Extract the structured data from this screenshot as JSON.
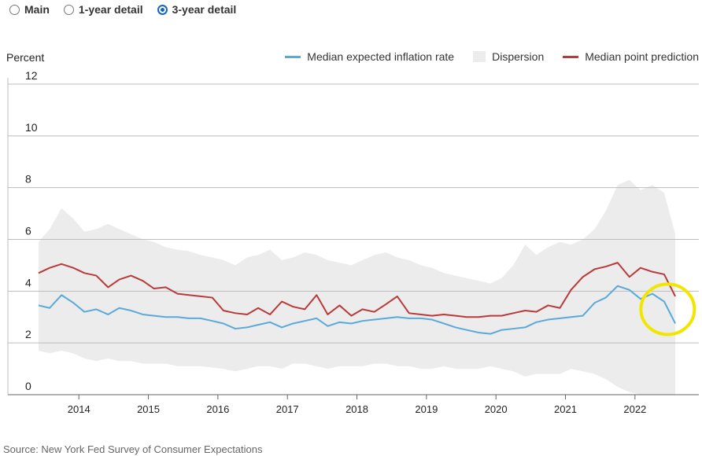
{
  "tabs": [
    {
      "label": "Main",
      "selected": false
    },
    {
      "label": "1-year detail",
      "selected": false
    },
    {
      "label": "3-year detail",
      "selected": true
    }
  ],
  "colors": {
    "median_rate": "#5aa9d9",
    "dispersion": "#ececec",
    "point_prediction": "#b83a3a",
    "highlight": "#f2e600",
    "selected_radio": "#1565c0"
  },
  "source": "Source: New York Fed Survey of Consumer Expectations",
  "chart_data": {
    "type": "line",
    "ylabel": "Percent",
    "xlabel": "",
    "ylim": [
      0,
      12
    ],
    "yticks": [
      "0",
      "2",
      "4",
      "6",
      "8",
      "10",
      "12"
    ],
    "xlim": [
      2013.42,
      2022.67
    ],
    "xticks": [
      "2014",
      "2015",
      "2016",
      "2017",
      "2018",
      "2019",
      "2020",
      "2021",
      "2022"
    ],
    "grid": true,
    "legend_position": "top-right",
    "legend": [
      "Median expected inflation rate",
      "Dispersion",
      "Median point prediction"
    ],
    "annotation": "yellow circle highlighting the 2022 decline",
    "series": [
      {
        "name": "Median expected inflation rate",
        "points": [
          [
            2013.42,
            3.45
          ],
          [
            2013.58,
            3.35
          ],
          [
            2013.75,
            3.85
          ],
          [
            2013.92,
            3.55
          ],
          [
            2014.08,
            3.2
          ],
          [
            2014.25,
            3.3
          ],
          [
            2014.42,
            3.1
          ],
          [
            2014.58,
            3.35
          ],
          [
            2014.75,
            3.25
          ],
          [
            2014.92,
            3.1
          ],
          [
            2015.08,
            3.05
          ],
          [
            2015.25,
            3.0
          ],
          [
            2015.42,
            3.0
          ],
          [
            2015.58,
            2.95
          ],
          [
            2015.75,
            2.95
          ],
          [
            2015.92,
            2.85
          ],
          [
            2016.08,
            2.75
          ],
          [
            2016.25,
            2.55
          ],
          [
            2016.42,
            2.6
          ],
          [
            2016.58,
            2.7
          ],
          [
            2016.75,
            2.8
          ],
          [
            2016.92,
            2.6
          ],
          [
            2017.08,
            2.75
          ],
          [
            2017.25,
            2.85
          ],
          [
            2017.42,
            2.95
          ],
          [
            2017.58,
            2.65
          ],
          [
            2017.75,
            2.8
          ],
          [
            2017.92,
            2.75
          ],
          [
            2018.08,
            2.85
          ],
          [
            2018.25,
            2.9
          ],
          [
            2018.42,
            2.95
          ],
          [
            2018.58,
            3.0
          ],
          [
            2018.75,
            2.95
          ],
          [
            2018.92,
            2.95
          ],
          [
            2019.08,
            2.9
          ],
          [
            2019.25,
            2.75
          ],
          [
            2019.42,
            2.6
          ],
          [
            2019.58,
            2.5
          ],
          [
            2019.75,
            2.4
          ],
          [
            2019.92,
            2.35
          ],
          [
            2020.08,
            2.5
          ],
          [
            2020.25,
            2.55
          ],
          [
            2020.42,
            2.6
          ],
          [
            2020.58,
            2.8
          ],
          [
            2020.75,
            2.9
          ],
          [
            2020.92,
            2.95
          ],
          [
            2021.08,
            3.0
          ],
          [
            2021.25,
            3.05
          ],
          [
            2021.42,
            3.55
          ],
          [
            2021.58,
            3.75
          ],
          [
            2021.75,
            4.2
          ],
          [
            2021.92,
            4.05
          ],
          [
            2022.08,
            3.7
          ],
          [
            2022.25,
            3.9
          ],
          [
            2022.42,
            3.6
          ],
          [
            2022.58,
            2.75
          ]
        ]
      },
      {
        "name": "Dispersion",
        "upper": [
          [
            2013.42,
            5.9
          ],
          [
            2013.58,
            6.4
          ],
          [
            2013.75,
            7.2
          ],
          [
            2013.92,
            6.8
          ],
          [
            2014.08,
            6.3
          ],
          [
            2014.25,
            6.4
          ],
          [
            2014.42,
            6.6
          ],
          [
            2014.58,
            6.4
          ],
          [
            2014.75,
            6.2
          ],
          [
            2014.92,
            6.0
          ],
          [
            2015.08,
            5.9
          ],
          [
            2015.25,
            5.7
          ],
          [
            2015.42,
            5.6
          ],
          [
            2015.58,
            5.55
          ],
          [
            2015.75,
            5.4
          ],
          [
            2015.92,
            5.3
          ],
          [
            2016.08,
            5.2
          ],
          [
            2016.25,
            5.0
          ],
          [
            2016.42,
            5.3
          ],
          [
            2016.58,
            5.4
          ],
          [
            2016.75,
            5.6
          ],
          [
            2016.92,
            5.2
          ],
          [
            2017.08,
            5.3
          ],
          [
            2017.25,
            5.5
          ],
          [
            2017.42,
            5.4
          ],
          [
            2017.58,
            5.2
          ],
          [
            2017.75,
            5.1
          ],
          [
            2017.92,
            5.0
          ],
          [
            2018.08,
            5.2
          ],
          [
            2018.25,
            5.4
          ],
          [
            2018.42,
            5.5
          ],
          [
            2018.58,
            5.3
          ],
          [
            2018.75,
            5.2
          ],
          [
            2018.92,
            5.0
          ],
          [
            2019.08,
            4.9
          ],
          [
            2019.25,
            4.7
          ],
          [
            2019.42,
            4.6
          ],
          [
            2019.58,
            4.5
          ],
          [
            2019.75,
            4.4
          ],
          [
            2019.92,
            4.3
          ],
          [
            2020.08,
            4.5
          ],
          [
            2020.25,
            5.0
          ],
          [
            2020.42,
            5.8
          ],
          [
            2020.58,
            5.4
          ],
          [
            2020.75,
            5.7
          ],
          [
            2020.92,
            5.9
          ],
          [
            2021.08,
            5.8
          ],
          [
            2021.25,
            6.0
          ],
          [
            2021.42,
            6.4
          ],
          [
            2021.58,
            7.1
          ],
          [
            2021.75,
            8.1
          ],
          [
            2021.92,
            8.3
          ],
          [
            2022.08,
            7.9
          ],
          [
            2022.25,
            8.1
          ],
          [
            2022.42,
            7.8
          ],
          [
            2022.58,
            6.2
          ]
        ],
        "lower": [
          [
            2013.42,
            1.7
          ],
          [
            2013.58,
            1.6
          ],
          [
            2013.75,
            1.7
          ],
          [
            2013.92,
            1.6
          ],
          [
            2014.08,
            1.4
          ],
          [
            2014.25,
            1.3
          ],
          [
            2014.42,
            1.4
          ],
          [
            2014.58,
            1.3
          ],
          [
            2014.75,
            1.3
          ],
          [
            2014.92,
            1.2
          ],
          [
            2015.08,
            1.2
          ],
          [
            2015.25,
            1.2
          ],
          [
            2015.42,
            1.1
          ],
          [
            2015.58,
            1.1
          ],
          [
            2015.75,
            1.1
          ],
          [
            2015.92,
            1.05
          ],
          [
            2016.08,
            1.0
          ],
          [
            2016.25,
            0.9
          ],
          [
            2016.42,
            1.0
          ],
          [
            2016.58,
            1.1
          ],
          [
            2016.75,
            1.1
          ],
          [
            2016.92,
            1.0
          ],
          [
            2017.08,
            1.2
          ],
          [
            2017.25,
            1.2
          ],
          [
            2017.42,
            1.1
          ],
          [
            2017.58,
            1.0
          ],
          [
            2017.75,
            1.1
          ],
          [
            2017.92,
            1.1
          ],
          [
            2018.08,
            1.1
          ],
          [
            2018.25,
            1.2
          ],
          [
            2018.42,
            1.2
          ],
          [
            2018.58,
            1.1
          ],
          [
            2018.75,
            1.1
          ],
          [
            2018.92,
            1.0
          ],
          [
            2019.08,
            1.0
          ],
          [
            2019.25,
            1.1
          ],
          [
            2019.42,
            1.0
          ],
          [
            2019.58,
            1.0
          ],
          [
            2019.75,
            1.0
          ],
          [
            2019.92,
            1.1
          ],
          [
            2020.08,
            1.0
          ],
          [
            2020.25,
            0.9
          ],
          [
            2020.42,
            0.7
          ],
          [
            2020.58,
            0.8
          ],
          [
            2020.75,
            0.8
          ],
          [
            2020.92,
            0.8
          ],
          [
            2021.08,
            1.0
          ],
          [
            2021.25,
            0.9
          ],
          [
            2021.42,
            0.8
          ],
          [
            2021.58,
            0.6
          ],
          [
            2021.75,
            0.3
          ],
          [
            2021.92,
            0.1
          ],
          [
            2022.08,
            0.0
          ],
          [
            2022.25,
            0.0
          ],
          [
            2022.42,
            0.0
          ],
          [
            2022.58,
            0.0
          ]
        ]
      },
      {
        "name": "Median point prediction",
        "points": [
          [
            2013.42,
            4.7
          ],
          [
            2013.58,
            4.9
          ],
          [
            2013.75,
            5.05
          ],
          [
            2013.92,
            4.9
          ],
          [
            2014.08,
            4.7
          ],
          [
            2014.25,
            4.6
          ],
          [
            2014.42,
            4.15
          ],
          [
            2014.58,
            4.45
          ],
          [
            2014.75,
            4.6
          ],
          [
            2014.92,
            4.4
          ],
          [
            2015.08,
            4.1
          ],
          [
            2015.25,
            4.15
          ],
          [
            2015.42,
            3.9
          ],
          [
            2015.58,
            3.85
          ],
          [
            2015.75,
            3.8
          ],
          [
            2015.92,
            3.75
          ],
          [
            2016.08,
            3.25
          ],
          [
            2016.25,
            3.15
          ],
          [
            2016.42,
            3.1
          ],
          [
            2016.58,
            3.35
          ],
          [
            2016.75,
            3.1
          ],
          [
            2016.92,
            3.6
          ],
          [
            2017.08,
            3.4
          ],
          [
            2017.25,
            3.3
          ],
          [
            2017.42,
            3.85
          ],
          [
            2017.58,
            3.1
          ],
          [
            2017.75,
            3.45
          ],
          [
            2017.92,
            3.05
          ],
          [
            2018.08,
            3.3
          ],
          [
            2018.25,
            3.2
          ],
          [
            2018.42,
            3.5
          ],
          [
            2018.58,
            3.8
          ],
          [
            2018.75,
            3.15
          ],
          [
            2018.92,
            3.1
          ],
          [
            2019.08,
            3.05
          ],
          [
            2019.25,
            3.1
          ],
          [
            2019.42,
            3.05
          ],
          [
            2019.58,
            3.0
          ],
          [
            2019.75,
            3.0
          ],
          [
            2019.92,
            3.05
          ],
          [
            2020.08,
            3.05
          ],
          [
            2020.25,
            3.15
          ],
          [
            2020.42,
            3.25
          ],
          [
            2020.58,
            3.2
          ],
          [
            2020.75,
            3.45
          ],
          [
            2020.92,
            3.35
          ],
          [
            2021.08,
            4.05
          ],
          [
            2021.25,
            4.55
          ],
          [
            2021.42,
            4.85
          ],
          [
            2021.58,
            4.95
          ],
          [
            2021.75,
            5.1
          ],
          [
            2021.92,
            4.55
          ],
          [
            2022.08,
            4.9
          ],
          [
            2022.25,
            4.75
          ],
          [
            2022.42,
            4.65
          ],
          [
            2022.58,
            3.8
          ]
        ]
      }
    ]
  }
}
